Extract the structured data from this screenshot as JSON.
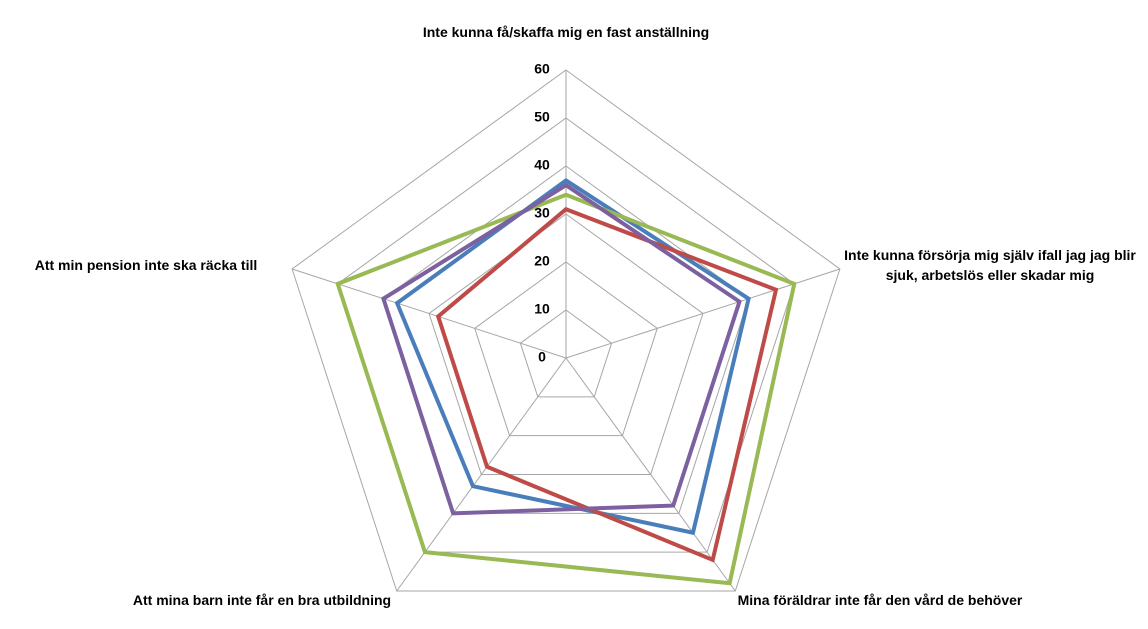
{
  "chart_data": {
    "type": "radar",
    "categories": [
      "Inte kunna få/skaffa mig en fast anställning",
      "Inte kunna försörja mig själv ifall jag jag blir sjuk, arbetslös eller skadar mig",
      "Mina föräldrar inte får den vård de behöver",
      "Att mina barn inte får en bra utbildning",
      "Att min pension inte ska räcka till"
    ],
    "series": [
      {
        "color": "#4a7ebb",
        "values": [
          37,
          40,
          45,
          33,
          37
        ]
      },
      {
        "color": "#be4b48",
        "values": [
          31,
          46,
          52,
          28,
          28
        ]
      },
      {
        "color": "#98b954",
        "values": [
          34,
          50,
          58,
          50,
          50
        ]
      },
      {
        "color": "#7d60a0",
        "values": [
          36,
          38,
          38,
          40,
          40
        ]
      }
    ],
    "rlim": [
      0,
      60
    ],
    "rticks": [
      0,
      10,
      20,
      30,
      40,
      50,
      60
    ],
    "grid": true
  }
}
